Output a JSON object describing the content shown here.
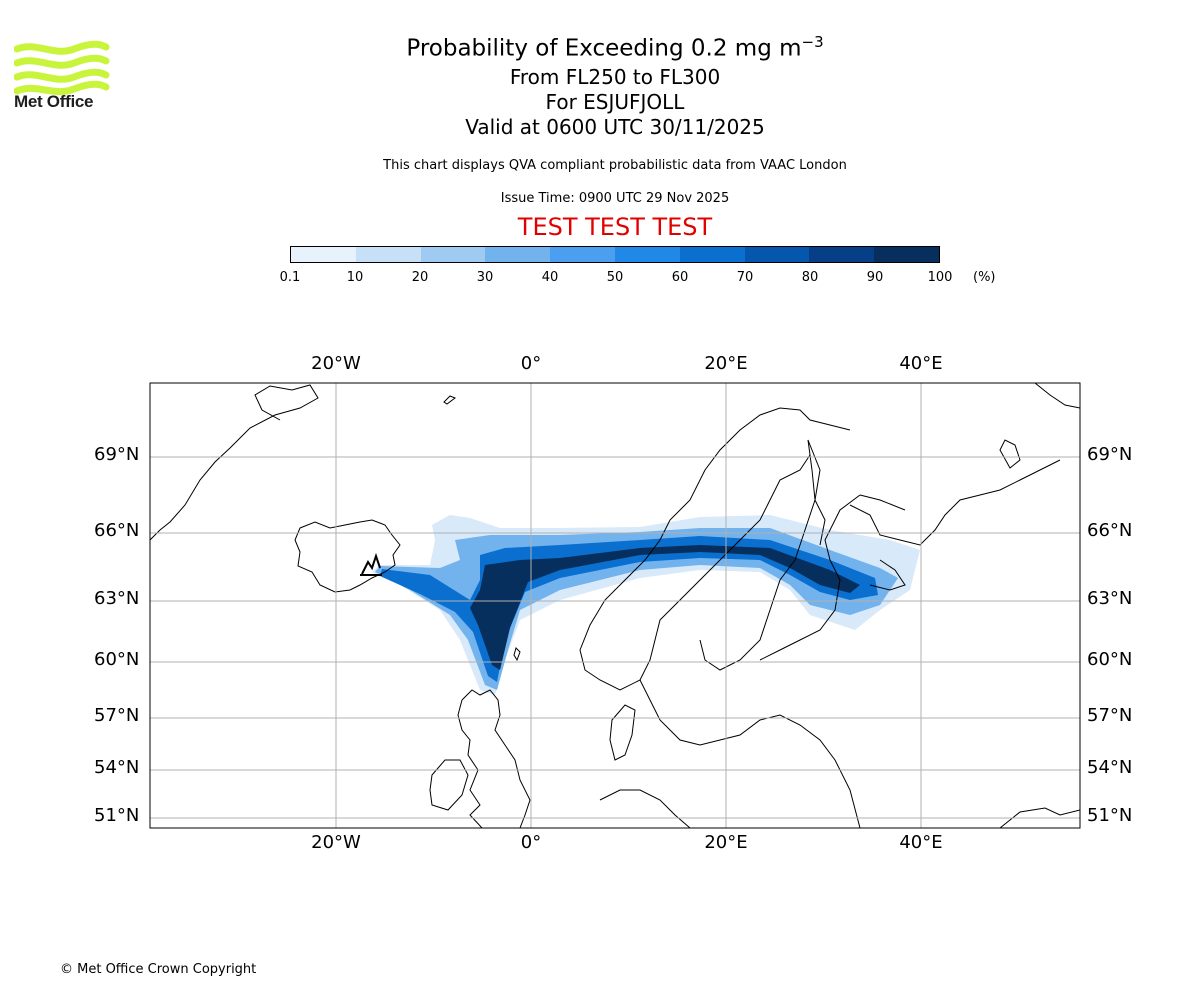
{
  "branding": {
    "name": "Met Office",
    "logo_icon": "met-office-wave-icon",
    "logo_color": "#c8f53c"
  },
  "header": {
    "title_main": "Probability of Exceeding 0.2 mg m",
    "title_exp": "−3",
    "levels": "From FL250 to FL300",
    "location": "For ESJUFJOLL",
    "valid": "Valid at 0600 UTC 30/11/2025",
    "disclaimer": "This chart displays QVA compliant probabilistic data from VAAC London",
    "issue_time": "Issue Time: 0900 UTC 29 Nov 2025",
    "test_banner": "TEST TEST TEST"
  },
  "colorbar": {
    "ticks": [
      "0.1",
      "10",
      "20",
      "30",
      "40",
      "50",
      "60",
      "70",
      "80",
      "90",
      "100"
    ],
    "unit": "(%)",
    "colors": [
      "#e8f2fc",
      "#c6e0f8",
      "#9fcbf3",
      "#72b3ee",
      "#4a9ff0",
      "#2088e6",
      "#0a6fcf",
      "#0556ad",
      "#063f86",
      "#062f5e"
    ]
  },
  "map": {
    "lon_labels": [
      "20°W",
      "0°",
      "20°E",
      "40°E"
    ],
    "lon_values": [
      -20,
      0,
      20,
      40
    ],
    "lat_labels": [
      "69°N",
      "66°N",
      "63°N",
      "60°N",
      "57°N",
      "54°N",
      "51°N"
    ],
    "lat_values": [
      69,
      66,
      63,
      60,
      57,
      54,
      51
    ],
    "gridlines": true
  },
  "footer": {
    "copyright": "© Met Office Crown Copyright"
  }
}
